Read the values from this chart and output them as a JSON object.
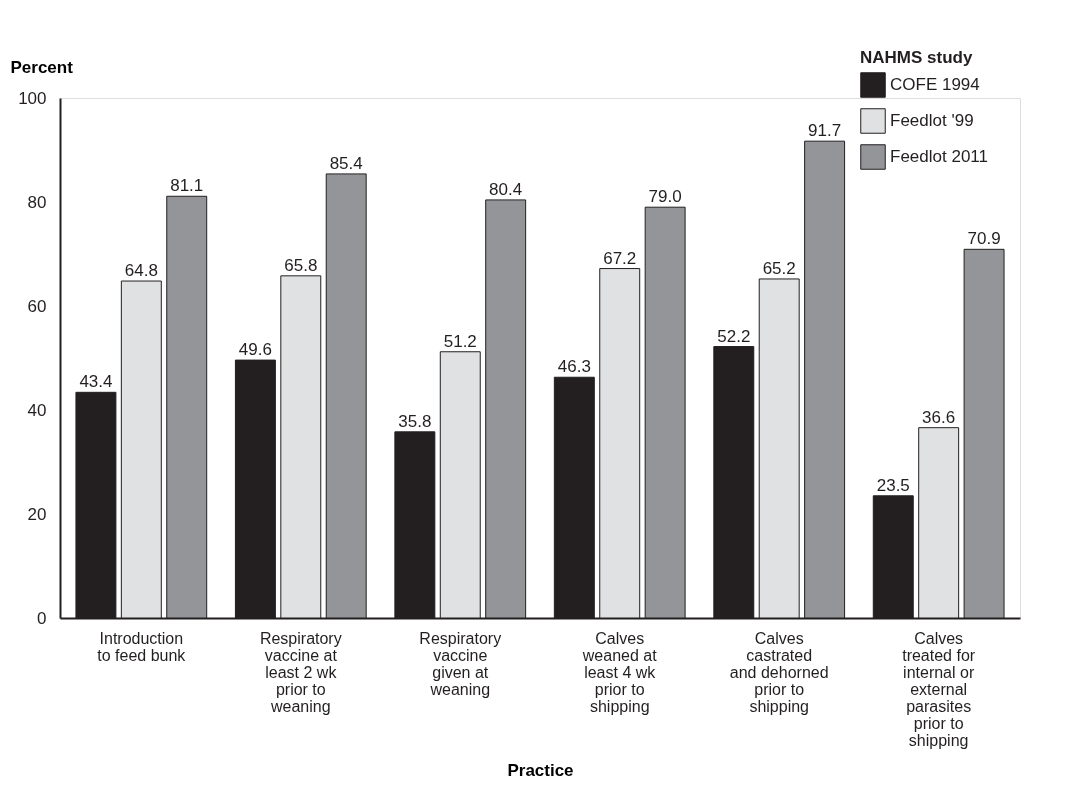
{
  "chart_data": {
    "type": "bar",
    "xlabel": "Practice",
    "ylabel": "Percent",
    "legend_title": "NAHMS study",
    "categories": [
      "Introduction to feed bunk",
      "Respiratory vaccine at least 2 wk prior to weaning",
      "Respiratory vaccine given at weaning",
      "Calves weaned at least 4 wk prior to shipping",
      "Calves castrated and dehorned prior to shipping",
      "Calves treated for internal or external parasites prior to shipping"
    ],
    "series": [
      {
        "name": "COFE 1994",
        "color": "#231f20",
        "values": [
          43.4,
          49.6,
          35.8,
          46.3,
          52.2,
          23.5
        ],
        "value_labels": [
          "43.4",
          "49.6",
          "35.8",
          "46.3",
          "52.2",
          "23.5"
        ]
      },
      {
        "name": "Feedlot '99",
        "color": "#e0e1e2",
        "values": [
          64.8,
          65.8,
          51.2,
          67.2,
          65.2,
          36.6
        ],
        "value_labels": [
          "64.8",
          "65.8",
          "51.2",
          "67.2",
          "65.2",
          "36.6"
        ]
      },
      {
        "name": "Feedlot 2011",
        "color": "#939598",
        "values": [
          81.1,
          85.4,
          80.4,
          79.0,
          91.7,
          70.9
        ],
        "value_labels": [
          "81.1",
          "85.4",
          "80.4",
          "79.0",
          "91.7",
          "70.9"
        ]
      }
    ],
    "ylim": [
      0,
      100
    ],
    "yticks": [
      0,
      20,
      40,
      60,
      80,
      100
    ],
    "grid": false,
    "legend": "top right"
  }
}
